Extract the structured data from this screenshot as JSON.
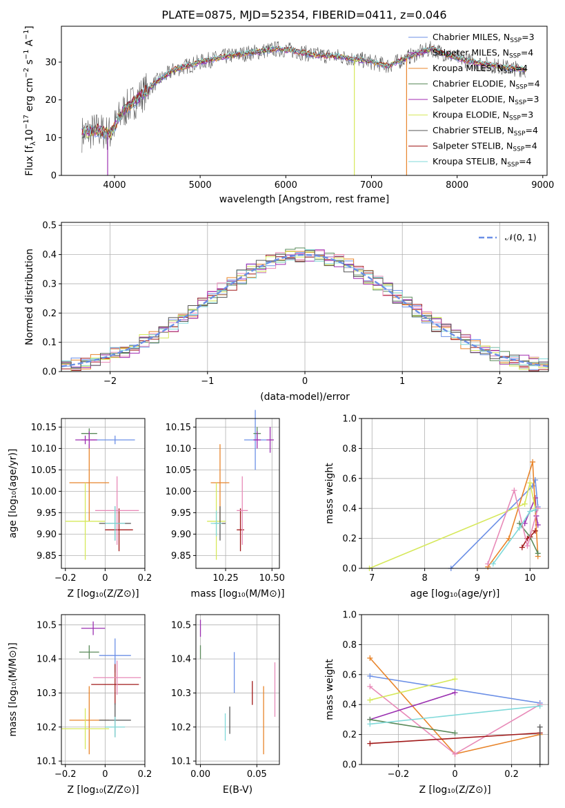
{
  "title": "PLATE=0875, MJD=52354, FIBERID=0411, z=0.046",
  "colors": {
    "models": [
      "#6b8fe6",
      "#9a2fb0",
      "#e8842a",
      "#5a8a5a",
      "#a02ab0",
      "#d6e85a",
      "#555555",
      "#a01818",
      "#7fd9d9"
    ],
    "normal_curve": "#6b8fe6",
    "grid": "#b0b0b0"
  },
  "legend": [
    {
      "base": "Chabrier MILES, N",
      "sub": "SSP",
      "tail": "=3",
      "color": "#6b8fe6"
    },
    {
      "base": "Salpeter MILES, N",
      "sub": "SSP",
      "tail": "=4",
      "color": "#9a2fb0"
    },
    {
      "base": "Kroupa MILES, N",
      "sub": "SSP",
      "tail": "=4",
      "color": "#e8842a"
    },
    {
      "base": "Chabrier ELODIE, N",
      "sub": "SSP",
      "tail": "=4",
      "color": "#5a8a5a"
    },
    {
      "base": "Salpeter ELODIE, N",
      "sub": "SSP",
      "tail": "=3",
      "color": "#a02ab0"
    },
    {
      "base": "Kroupa ELODIE, N",
      "sub": "SSP",
      "tail": "=3",
      "color": "#d6e85a"
    },
    {
      "base": "Chabrier STELIB, N",
      "sub": "SSP",
      "tail": "=4",
      "color": "#555555"
    },
    {
      "base": "Salpeter STELIB, N",
      "sub": "SSP",
      "tail": "=4",
      "color": "#a01818"
    },
    {
      "base": "Kroupa STELIB, N",
      "sub": "SSP",
      "tail": "=4",
      "color": "#7fd9d9"
    }
  ],
  "chart_data": [
    {
      "id": "spectrum",
      "type": "line",
      "title": "PLATE=0875, MJD=52354, FIBERID=0411, z=0.046",
      "xlabel": "wavelength [Angstrom, rest frame]",
      "ylabel": "Flux [f_λ 10^-17 erg cm^-2 s^-1 A^-1]",
      "xlim": [
        3380,
        9050
      ],
      "ylim": [
        0,
        39.5
      ],
      "xticks": [
        4000,
        5000,
        6000,
        7000,
        8000,
        9000
      ],
      "yticks": [
        0,
        10,
        20,
        30
      ],
      "continuum": {
        "x": [
          3620,
          3800,
          3950,
          4100,
          4300,
          4500,
          4700,
          5000,
          5300,
          5600,
          5900,
          6100,
          6300,
          6600,
          6900,
          7200,
          7500,
          7700,
          8000,
          8300,
          8600,
          8800
        ],
        "y": [
          11,
          12,
          11,
          17,
          21,
          25,
          28,
          30,
          31.5,
          32.5,
          33.5,
          33,
          32,
          31.5,
          30.5,
          29,
          32,
          33.5,
          31,
          29.5,
          28.5,
          28
        ]
      },
      "drops": [
        {
          "x": 3920,
          "y": 0
        },
        {
          "x": 6800,
          "y": 0
        },
        {
          "x": 7410,
          "y": 0
        }
      ]
    },
    {
      "id": "residuals",
      "type": "bar",
      "xlabel": "(data-model)/error",
      "ylabel": "Normed distribution",
      "xlim": [
        -2.5,
        2.5
      ],
      "ylim": [
        0,
        0.51
      ],
      "xticks": [
        -2,
        -1,
        0,
        1,
        2
      ],
      "yticks": [
        0.0,
        0.1,
        0.2,
        0.3,
        0.4,
        0.5
      ],
      "bin_width": 0.1,
      "curve_label": "𝒩(0, 1)"
    },
    {
      "id": "age-vs-Z",
      "type": "scatter",
      "xlabel": "Z [log10(Z/Z⊙)]",
      "ylabel": "age [log10(age/yr)]",
      "xlim": [
        -0.22,
        0.2
      ],
      "ylim": [
        9.82,
        10.17
      ],
      "xticks": [
        -0.2,
        0.0,
        0.2
      ],
      "yticks": [
        9.85,
        9.9,
        9.95,
        10.0,
        10.05,
        10.1,
        10.15
      ],
      "points": [
        {
          "x": 0.05,
          "y": 10.12,
          "xerr": 0.1,
          "yerr": 0.01,
          "color": "#6b8fe6"
        },
        {
          "x": -0.1,
          "y": 10.12,
          "xerr": 0.05,
          "yerr": 0.01,
          "color": "#9a2fb0"
        },
        {
          "x": -0.08,
          "y": 10.02,
          "xerr": 0.1,
          "yerr": 0.09,
          "color": "#e8842a"
        },
        {
          "x": -0.08,
          "y": 10.135,
          "xerr": 0.04,
          "yerr": 0.012,
          "color": "#5a8a5a"
        },
        {
          "x": -0.08,
          "y": 10.12,
          "xerr": 0.04,
          "yerr": 0.02,
          "color": "#a02ab0"
        },
        {
          "x": -0.1,
          "y": 9.93,
          "xerr": 0.1,
          "yerr": 0.09,
          "color": "#d6e85a"
        },
        {
          "x": 0.05,
          "y": 9.925,
          "xerr": 0.08,
          "yerr": 0.04,
          "color": "#555555"
        },
        {
          "x": 0.07,
          "y": 9.91,
          "xerr": 0.07,
          "yerr": 0.05,
          "color": "#a01818"
        },
        {
          "x": 0.06,
          "y": 9.955,
          "xerr": 0.11,
          "yerr": 0.08,
          "color": "#e88ab8"
        },
        {
          "x": 0.05,
          "y": 9.925,
          "xerr": 0.05,
          "yerr": 0.04,
          "color": "#7fd9d9"
        }
      ]
    },
    {
      "id": "age-vs-mass",
      "type": "scatter",
      "xlabel": "mass [log10(M/M⊙)]",
      "ylabel": "",
      "xlim": [
        10.09,
        10.54
      ],
      "ylim": [
        9.82,
        10.17
      ],
      "xticks": [
        10.25,
        10.5
      ],
      "yticks": [
        9.85,
        9.9,
        9.95,
        10.0,
        10.05,
        10.1,
        10.15
      ],
      "points": [
        {
          "x": 10.41,
          "y": 10.12,
          "xerr": 0.06,
          "yerr": 0.07,
          "color": "#6b8fe6"
        },
        {
          "x": 10.49,
          "y": 10.12,
          "xerr": 0.02,
          "yerr": 0.03,
          "color": "#9a2fb0"
        },
        {
          "x": 10.22,
          "y": 10.02,
          "xerr": 0.05,
          "yerr": 0.09,
          "color": "#e8842a"
        },
        {
          "x": 10.42,
          "y": 10.135,
          "xerr": 0.02,
          "yerr": 0.015,
          "color": "#5a8a5a"
        },
        {
          "x": 10.42,
          "y": 10.12,
          "xerr": 0.02,
          "yerr": 0.02,
          "color": "#a02ab0"
        },
        {
          "x": 10.2,
          "y": 9.93,
          "xerr": 0.05,
          "yerr": 0.09,
          "color": "#d6e85a"
        },
        {
          "x": 10.22,
          "y": 9.925,
          "xerr": 0.03,
          "yerr": 0.04,
          "color": "#555555"
        },
        {
          "x": 10.33,
          "y": 9.91,
          "xerr": 0.02,
          "yerr": 0.05,
          "color": "#a01818"
        },
        {
          "x": 10.34,
          "y": 9.955,
          "xerr": 0.03,
          "yerr": 0.08,
          "color": "#e88ab8"
        },
        {
          "x": 10.2,
          "y": 9.925,
          "xerr": 0.03,
          "yerr": 0.03,
          "color": "#7fd9d9"
        }
      ]
    },
    {
      "id": "weight-vs-age",
      "type": "line",
      "xlabel": "age [log10(age/yr)]",
      "ylabel": "mass weight",
      "xlim": [
        6.8,
        10.35
      ],
      "ylim": [
        0,
        1
      ],
      "xticks": [
        7,
        8,
        9,
        10
      ],
      "yticks": [
        0.0,
        0.2,
        0.4,
        0.6,
        0.8,
        1.0
      ],
      "series": [
        {
          "color": "#6b8fe6",
          "x": [
            8.5,
            10.05,
            10.1,
            10.15
          ],
          "y": [
            0.0,
            0.55,
            0.59,
            0.41
          ]
        },
        {
          "color": "#9a2fb0",
          "x": [
            9.9,
            10.1,
            10.12,
            10.15
          ],
          "y": [
            0.3,
            0.47,
            0.35,
            0.29
          ]
        },
        {
          "color": "#e8842a",
          "x": [
            9.2,
            9.6,
            10.05,
            10.15
          ],
          "y": [
            0.01,
            0.2,
            0.71,
            0.08
          ]
        },
        {
          "color": "#5a8a5a",
          "x": [
            9.8,
            10.0,
            10.15
          ],
          "y": [
            0.3,
            0.21,
            0.1
          ]
        },
        {
          "color": "#d6e85a",
          "x": [
            6.95,
            9.9,
            10.0,
            10.1
          ],
          "y": [
            0.0,
            0.43,
            0.57,
            0.4
          ]
        },
        {
          "color": "#a01818",
          "x": [
            9.85,
            9.95,
            10.0,
            10.1
          ],
          "y": [
            0.14,
            0.2,
            0.21,
            0.25
          ]
        },
        {
          "color": "#e88ab8",
          "x": [
            9.2,
            9.7,
            9.95,
            10.15
          ],
          "y": [
            0.03,
            0.52,
            0.15,
            0.4
          ]
        },
        {
          "color": "#7fd9d9",
          "x": [
            9.3,
            9.8,
            10.0,
            10.1
          ],
          "y": [
            0.03,
            0.27,
            0.38,
            0.39
          ]
        }
      ]
    },
    {
      "id": "mass-vs-Z",
      "type": "scatter",
      "xlabel": "Z [log10(Z/Z⊙)]",
      "ylabel": "mass [log10(M/M⊙)]",
      "xlim": [
        -0.22,
        0.2
      ],
      "ylim": [
        10.09,
        10.53
      ],
      "xticks": [
        -0.2,
        0.0,
        0.2
      ],
      "yticks": [
        10.1,
        10.2,
        10.3,
        10.4,
        10.5
      ],
      "points": [
        {
          "x": 0.05,
          "y": 10.41,
          "xerr": 0.08,
          "yerr": 0.05,
          "color": "#6b8fe6"
        },
        {
          "x": -0.06,
          "y": 10.49,
          "xerr": 0.06,
          "yerr": 0.02,
          "color": "#9a2fb0"
        },
        {
          "x": -0.08,
          "y": 10.22,
          "xerr": 0.1,
          "yerr": 0.1,
          "color": "#e8842a"
        },
        {
          "x": -0.08,
          "y": 10.42,
          "xerr": 0.05,
          "yerr": 0.02,
          "color": "#5a8a5a"
        },
        {
          "x": 0.05,
          "y": 10.325,
          "xerr": 0.12,
          "yerr": 0.06,
          "color": "#a01818"
        },
        {
          "x": 0.06,
          "y": 10.345,
          "xerr": 0.12,
          "yerr": 0.05,
          "color": "#e88ab8"
        },
        {
          "x": -0.1,
          "y": 10.195,
          "xerr": 0.12,
          "yerr": 0.06,
          "color": "#d6e85a"
        },
        {
          "x": 0.05,
          "y": 10.22,
          "xerr": 0.08,
          "yerr": 0.05,
          "color": "#555555"
        },
        {
          "x": 0.05,
          "y": 10.2,
          "xerr": 0.05,
          "yerr": 0.03,
          "color": "#7fd9d9"
        }
      ]
    },
    {
      "id": "mass-vs-EBV",
      "type": "scatter",
      "xlabel": "E(B-V)",
      "ylabel": "",
      "xlim": [
        -0.004,
        0.07
      ],
      "ylim": [
        10.09,
        10.53
      ],
      "xticks": [
        0.0,
        0.05
      ],
      "yticks": [
        10.1,
        10.2,
        10.3,
        10.4,
        10.5
      ],
      "points": [
        {
          "x": 0.0,
          "y": 10.49,
          "yerr": 0.025,
          "color": "#9a2fb0"
        },
        {
          "x": 0.0,
          "y": 10.42,
          "yerr": 0.02,
          "color": "#5a8a5a"
        },
        {
          "x": 0.03,
          "y": 10.36,
          "yerr": 0.06,
          "color": "#6b8fe6"
        },
        {
          "x": 0.046,
          "y": 10.3,
          "yerr": 0.035,
          "color": "#a01818"
        },
        {
          "x": 0.066,
          "y": 10.31,
          "yerr": 0.08,
          "color": "#e88ab8"
        },
        {
          "x": 0.026,
          "y": 10.22,
          "yerr": 0.04,
          "color": "#555555"
        },
        {
          "x": 0.022,
          "y": 10.2,
          "yerr": 0.04,
          "color": "#7fd9d9"
        },
        {
          "x": 0.056,
          "y": 10.22,
          "yerr": 0.1,
          "color": "#e8842a"
        }
      ]
    },
    {
      "id": "weight-vs-Z",
      "type": "line",
      "xlabel": "Z [log10(Z/Z⊙)]",
      "ylabel": "mass weight",
      "xlim": [
        -0.33,
        0.33
      ],
      "ylim": [
        0,
        1
      ],
      "xticks": [
        -0.2,
        0.0,
        0.2
      ],
      "yticks": [
        0.0,
        0.2,
        0.4,
        0.6,
        0.8,
        1.0
      ],
      "series": [
        {
          "color": "#6b8fe6",
          "x": [
            -0.3,
            0.3
          ],
          "y": [
            0.59,
            0.41
          ]
        },
        {
          "color": "#e8842a",
          "x": [
            -0.3,
            0.0,
            0.3
          ],
          "y": [
            0.71,
            0.07,
            0.2
          ]
        },
        {
          "color": "#e88ab8",
          "x": [
            -0.3,
            0.0,
            0.3
          ],
          "y": [
            0.52,
            0.07,
            0.4
          ]
        },
        {
          "color": "#d6e85a",
          "x": [
            -0.3,
            0.0
          ],
          "y": [
            0.43,
            0.57
          ]
        },
        {
          "color": "#9a2fb0",
          "x": [
            -0.3,
            0.0
          ],
          "y": [
            0.3,
            0.48
          ]
        },
        {
          "color": "#5a8a5a",
          "x": [
            -0.3,
            0.0
          ],
          "y": [
            0.3,
            0.21
          ]
        },
        {
          "color": "#7fd9d9",
          "x": [
            -0.3,
            0.3
          ],
          "y": [
            0.27,
            0.39
          ]
        },
        {
          "color": "#a01818",
          "x": [
            -0.3,
            0.3
          ],
          "y": [
            0.14,
            0.21
          ]
        },
        {
          "color": "#555555",
          "x": [
            0.3,
            0.3
          ],
          "y": [
            0.0,
            0.25
          ]
        }
      ]
    }
  ]
}
